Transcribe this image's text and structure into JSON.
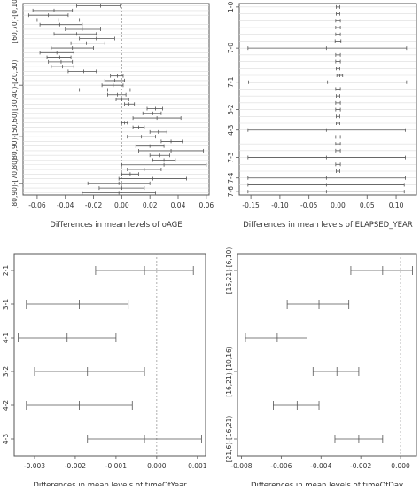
{
  "chart_data": [
    {
      "type": "errorbar",
      "id": "age",
      "xlabel": "Differences in mean levels of oAGE",
      "xlim": [
        -0.07,
        0.062
      ],
      "xticks": [
        -0.06,
        -0.04,
        -0.02,
        0.0,
        0.02,
        0.04,
        0.06
      ],
      "xtick_labels": [
        "-0.06",
        "-0.04",
        "-0.02",
        "0.00",
        "0.02",
        "0.04",
        "0.06"
      ],
      "ytick_labels": [
        "[60,70)-[0,10)",
        "[30,40)-[20,30)",
        "[80,90)-[50,60)",
        "[80,90)-[70,80)"
      ],
      "ytick_rows": [
        3,
        17,
        28,
        38
      ],
      "grid": "horizontal",
      "zero_line": true,
      "intervals": [
        {
          "lwr": -0.032,
          "est": -0.015,
          "upr": -0.001
        },
        {
          "lwr": -0.063,
          "est": -0.048,
          "upr": -0.035
        },
        {
          "lwr": -0.066,
          "est": -0.052,
          "upr": -0.038
        },
        {
          "lwr": -0.06,
          "est": -0.045,
          "upr": -0.03
        },
        {
          "lwr": -0.058,
          "est": -0.044,
          "upr": -0.028
        },
        {
          "lwr": -0.04,
          "est": -0.028,
          "upr": -0.015
        },
        {
          "lwr": -0.048,
          "est": -0.032,
          "upr": -0.018
        },
        {
          "lwr": -0.03,
          "est": -0.018,
          "upr": -0.005
        },
        {
          "lwr": -0.036,
          "est": -0.025,
          "upr": -0.012
        },
        {
          "lwr": -0.05,
          "est": -0.035,
          "upr": -0.02
        },
        {
          "lwr": -0.058,
          "est": -0.046,
          "upr": -0.034
        },
        {
          "lwr": -0.053,
          "est": -0.044,
          "upr": -0.036
        },
        {
          "lwr": -0.052,
          "est": -0.043,
          "upr": -0.035
        },
        {
          "lwr": -0.05,
          "est": -0.042,
          "upr": -0.034
        },
        {
          "lwr": -0.038,
          "est": -0.027,
          "upr": -0.018
        },
        {
          "lwr": -0.008,
          "est": -0.003,
          "upr": 0.001
        },
        {
          "lwr": -0.012,
          "est": -0.005,
          "upr": 0.002
        },
        {
          "lwr": -0.014,
          "est": -0.006,
          "upr": 0.001
        },
        {
          "lwr": -0.03,
          "est": -0.01,
          "upr": 0.006
        },
        {
          "lwr": -0.01,
          "est": -0.003,
          "upr": 0.003
        },
        {
          "lwr": -0.004,
          "est": 0.0,
          "upr": 0.005
        },
        {
          "lwr": 0.002,
          "est": 0.005,
          "upr": 0.009
        },
        {
          "lwr": 0.018,
          "est": 0.024,
          "upr": 0.029
        },
        {
          "lwr": 0.015,
          "est": 0.022,
          "upr": 0.028
        },
        {
          "lwr": 0.008,
          "est": 0.025,
          "upr": 0.042
        },
        {
          "lwr": 0.0,
          "est": 0.002,
          "upr": 0.004
        },
        {
          "lwr": 0.008,
          "est": 0.012,
          "upr": 0.016
        },
        {
          "lwr": 0.02,
          "est": 0.026,
          "upr": 0.032
        },
        {
          "lwr": 0.004,
          "est": 0.014,
          "upr": 0.024
        },
        {
          "lwr": 0.028,
          "est": 0.035,
          "upr": 0.043
        },
        {
          "lwr": 0.01,
          "est": 0.02,
          "upr": 0.03
        },
        {
          "lwr": 0.012,
          "est": 0.035,
          "upr": 0.058
        },
        {
          "lwr": 0.02,
          "est": 0.027,
          "upr": 0.034
        },
        {
          "lwr": 0.022,
          "est": 0.03,
          "upr": 0.038
        },
        {
          "lwr": 0.0,
          "est": 0.03,
          "upr": 0.06
        },
        {
          "lwr": 0.004,
          "est": 0.016,
          "upr": 0.028
        },
        {
          "lwr": 0.0,
          "est": 0.006,
          "upr": 0.012
        },
        {
          "lwr": -0.002,
          "est": 0.022,
          "upr": 0.046
        },
        {
          "lwr": -0.024,
          "est": -0.002,
          "upr": 0.02
        },
        {
          "lwr": -0.016,
          "est": 0.0,
          "upr": 0.016
        },
        {
          "lwr": -0.028,
          "est": -0.002,
          "upr": 0.024
        }
      ]
    },
    {
      "type": "errorbar",
      "id": "year",
      "xlabel": "Differences in mean levels of ELAPSED_YEAR",
      "xlim": [
        -0.17,
        0.135
      ],
      "xticks": [
        -0.15,
        -0.1,
        -0.05,
        0.0,
        0.05,
        0.1
      ],
      "xtick_labels": [
        "-0.15",
        "-0.10",
        "-0.05",
        "0.00",
        "0.05",
        "0.10"
      ],
      "ytick_labels": [
        "1-0",
        "7-0",
        "7-1",
        "5-2",
        "4-3",
        "7-3",
        "7-4",
        "7-6"
      ],
      "ytick_rows": [
        0,
        6,
        11,
        15,
        18,
        22,
        25,
        27
      ],
      "grid": "horizontal",
      "zero_line": true,
      "intervals": [
        {
          "lwr": -0.003,
          "est": 0.0,
          "upr": 0.003
        },
        {
          "lwr": -0.003,
          "est": 0.0,
          "upr": 0.003
        },
        {
          "lwr": -0.004,
          "est": 0.0,
          "upr": 0.004
        },
        {
          "lwr": -0.004,
          "est": 0.0,
          "upr": 0.004
        },
        {
          "lwr": -0.004,
          "est": 0.0,
          "upr": 0.004
        },
        {
          "lwr": -0.005,
          "est": 0.0,
          "upr": 0.005
        },
        {
          "lwr": -0.155,
          "est": -0.02,
          "upr": 0.118
        },
        {
          "lwr": -0.004,
          "est": 0.0,
          "upr": 0.004
        },
        {
          "lwr": -0.004,
          "est": 0.0,
          "upr": 0.004
        },
        {
          "lwr": -0.003,
          "est": 0.0,
          "upr": 0.003
        },
        {
          "lwr": -0.002,
          "est": 0.003,
          "upr": 0.008
        },
        {
          "lwr": -0.154,
          "est": -0.018,
          "upr": 0.118
        },
        {
          "lwr": -0.004,
          "est": 0.0,
          "upr": 0.004
        },
        {
          "lwr": -0.003,
          "est": 0.0,
          "upr": 0.003
        },
        {
          "lwr": -0.004,
          "est": 0.0,
          "upr": 0.004
        },
        {
          "lwr": -0.004,
          "est": 0.0,
          "upr": 0.004
        },
        {
          "lwr": -0.003,
          "est": 0.0,
          "upr": 0.003
        },
        {
          "lwr": -0.003,
          "est": 0.0,
          "upr": 0.003
        },
        {
          "lwr": -0.155,
          "est": -0.02,
          "upr": 0.116
        },
        {
          "lwr": -0.004,
          "est": 0.0,
          "upr": 0.004
        },
        {
          "lwr": -0.004,
          "est": 0.0,
          "upr": 0.004
        },
        {
          "lwr": -0.004,
          "est": 0.0,
          "upr": 0.004
        },
        {
          "lwr": -0.155,
          "est": -0.02,
          "upr": 0.116
        },
        {
          "lwr": -0.004,
          "est": 0.0,
          "upr": 0.004
        },
        {
          "lwr": -0.003,
          "est": 0.0,
          "upr": 0.003
        },
        {
          "lwr": -0.155,
          "est": -0.02,
          "upr": 0.116
        },
        {
          "lwr": -0.155,
          "est": -0.02,
          "upr": 0.114
        },
        {
          "lwr": -0.155,
          "est": -0.02,
          "upr": 0.114
        }
      ]
    },
    {
      "type": "errorbar",
      "id": "timeOfYear",
      "xlabel": "Differences in mean levels of timeOfYear",
      "xlim": [
        -0.0035,
        0.0012
      ],
      "xticks": [
        -0.003,
        -0.002,
        -0.001,
        0.0,
        0.001
      ],
      "xtick_labels": [
        "-0.003",
        "-0.002",
        "-0.001",
        "0.000",
        "0.001"
      ],
      "ytick_labels": [
        "2-1",
        "3-1",
        "4-1",
        "3-2",
        "4-2",
        "4-3"
      ],
      "ytick_rows": [
        0,
        1,
        2,
        3,
        4,
        5
      ],
      "grid": "none",
      "zero_line": true,
      "intervals": [
        {
          "lwr": -0.0015,
          "est": -0.0003,
          "upr": 0.0009
        },
        {
          "lwr": -0.0032,
          "est": -0.0019,
          "upr": -0.0007
        },
        {
          "lwr": -0.0034,
          "est": -0.0022,
          "upr": -0.001
        },
        {
          "lwr": -0.003,
          "est": -0.0017,
          "upr": -0.0003
        },
        {
          "lwr": -0.0032,
          "est": -0.0019,
          "upr": -0.0006
        },
        {
          "lwr": -0.0017,
          "est": -0.0003,
          "upr": 0.0011
        }
      ]
    },
    {
      "type": "errorbar",
      "id": "timeOfDay",
      "xlabel": "Differences in mean levels of timeOfDay",
      "xlim": [
        -0.0082,
        0.0008
      ],
      "xticks": [
        -0.008,
        -0.006,
        -0.004,
        -0.002,
        0.0
      ],
      "xtick_labels": [
        "-0.008",
        "-0.006",
        "-0.004",
        "-0.002",
        "0.000"
      ],
      "ytick_labels": [
        "[16,21)-[6,10)",
        "[16,21)-[10,16)",
        "[21,6)-[16,21)"
      ],
      "ytick_rows": [
        0,
        3,
        5
      ],
      "grid": "none",
      "zero_line": true,
      "intervals": [
        {
          "lwr": -0.0025,
          "est": -0.0009,
          "upr": 0.0006
        },
        {
          "lwr": -0.0057,
          "est": -0.0041,
          "upr": -0.0026
        },
        {
          "lwr": -0.0078,
          "est": -0.0062,
          "upr": -0.0047
        },
        {
          "lwr": -0.0044,
          "est": -0.0032,
          "upr": -0.0021
        },
        {
          "lwr": -0.0064,
          "est": -0.0052,
          "upr": -0.0041
        },
        {
          "lwr": -0.0033,
          "est": -0.0021,
          "upr": -0.0009
        }
      ]
    }
  ]
}
